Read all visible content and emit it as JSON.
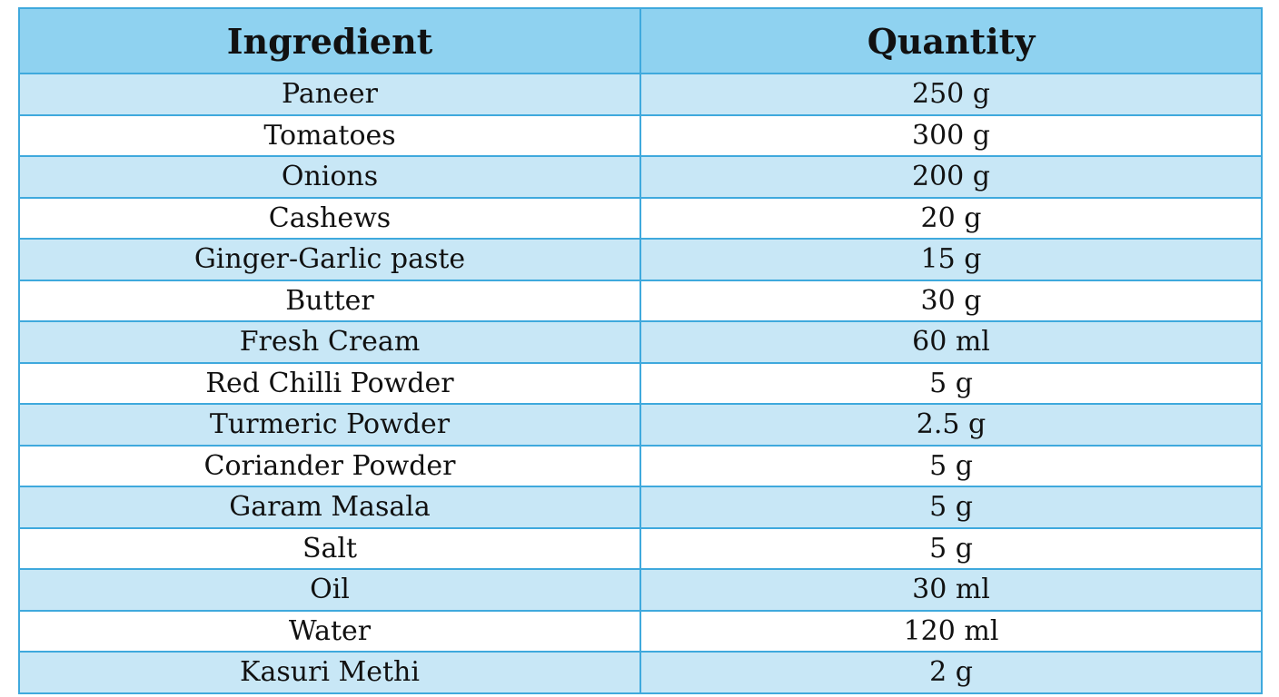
{
  "table": {
    "header": [
      "Ingredient",
      "Quantity"
    ],
    "rows": [
      [
        "Paneer",
        "250 g"
      ],
      [
        "Tomatoes",
        "300 g"
      ],
      [
        "Onions",
        "200 g"
      ],
      [
        "Cashews",
        "20 g"
      ],
      [
        "Ginger-Garlic paste",
        "15 g"
      ],
      [
        "Butter",
        "30 g"
      ],
      [
        "Fresh Cream",
        "60 ml"
      ],
      [
        "Red Chilli Powder",
        "5 g"
      ],
      [
        "Turmeric Powder",
        "2.5 g"
      ],
      [
        "Coriander Powder",
        "5 g"
      ],
      [
        "Garam Masala",
        "5 g"
      ],
      [
        "Salt",
        "5 g"
      ],
      [
        "Oil",
        "30 ml"
      ],
      [
        "Water",
        "120 ml"
      ],
      [
        "Kasuri Methi",
        "2 g"
      ]
    ]
  }
}
